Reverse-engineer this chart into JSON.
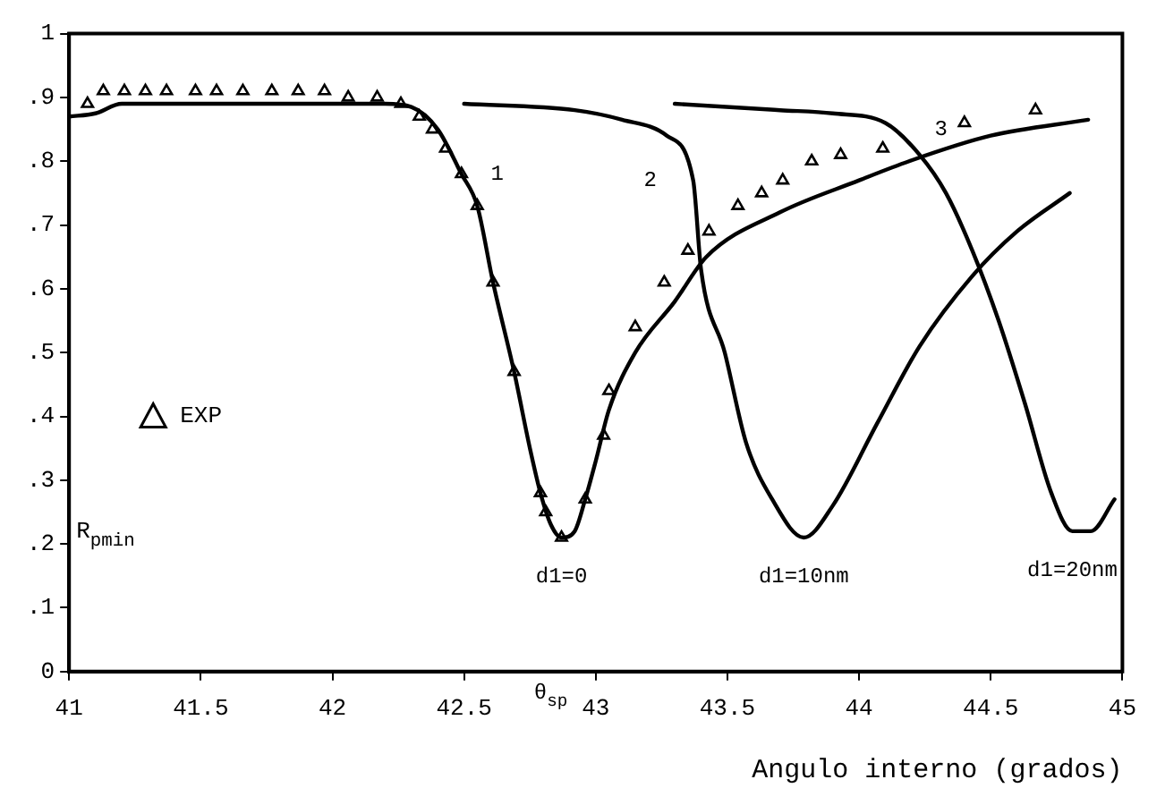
{
  "chart_data": {
    "type": "line",
    "xlabel": "Angulo interno (grados)",
    "ylabel": "R$_{pmin}$",
    "xlim": [
      41,
      45
    ],
    "ylim": [
      0,
      1
    ],
    "xticks": [
      41,
      41.5,
      42,
      42.5,
      43,
      43.5,
      44,
      44.5,
      45
    ],
    "yticks": [
      0,
      {
        "value": 0.1,
        "label": ".1"
      },
      {
        "value": 0.2,
        "label": ".2"
      },
      {
        "value": 0.3,
        "label": ".3"
      },
      {
        "value": 0.4,
        "label": ".4"
      },
      {
        "value": 0.5,
        "label": ".5"
      },
      {
        "value": 0.6,
        "label": ".6"
      },
      {
        "value": 0.7,
        "label": ".7"
      },
      {
        "value": 0.8,
        "label": ".8"
      },
      {
        "value": 0.9,
        "label": ".9"
      },
      1
    ],
    "grid": false,
    "legend": "left",
    "line_style": "solid",
    "marker": "none",
    "series": [
      {
        "name": "d1=0",
        "color": "#000000",
        "x": [
          41,
          41.1,
          41.2,
          41.5,
          42,
          42.2,
          42.3,
          42.4,
          42.49,
          42.55,
          42.61,
          42.69,
          42.75,
          42.79,
          42.83,
          42.87,
          42.92,
          42.96,
          43,
          43.05,
          43.15,
          43.3,
          43.42,
          43.7,
          44,
          44.19,
          44.5,
          44.87
        ],
        "values": [
          0.87,
          0.875,
          0.89,
          0.89,
          0.89,
          0.89,
          0.885,
          0.85,
          0.78,
          0.73,
          0.61,
          0.47,
          0.35,
          0.28,
          0.23,
          0.21,
          0.22,
          0.27,
          0.33,
          0.41,
          0.5,
          0.58,
          0.65,
          0.72,
          0.77,
          0.8,
          0.84,
          0.865
        ]
      },
      {
        "name": "d1=10nm",
        "color": "#000000",
        "x": [
          42.5,
          42.92,
          43.1,
          43.27,
          43.37,
          43.4,
          43.49,
          43.57,
          43.67,
          43.79,
          43.9,
          44.07,
          44.23,
          44.43,
          44.6,
          44.8
        ],
        "values": [
          0.89,
          0.88,
          0.865,
          0.84,
          0.77,
          0.63,
          0.5,
          0.36,
          0.27,
          0.21,
          0.26,
          0.39,
          0.51,
          0.62,
          0.69,
          0.75
        ]
      },
      {
        "name": "d1=20nm",
        "color": "#000000",
        "x": [
          43.3,
          43.7,
          43.9,
          44.1,
          44.23,
          44.33,
          44.43,
          44.53,
          44.63,
          44.73,
          44.81,
          44.88,
          44.97
        ],
        "values": [
          0.89,
          0.88,
          0.875,
          0.86,
          0.81,
          0.75,
          0.66,
          0.55,
          0.42,
          0.28,
          0.22,
          0.22,
          0.27
        ]
      },
      {
        "name": "EXP",
        "type": "scatter",
        "marker": "triangle",
        "color": "#000000",
        "x": [
          41.07,
          41.13,
          41.21,
          41.29,
          41.37,
          41.48,
          41.56,
          41.66,
          41.77,
          41.87,
          41.97,
          42.06,
          42.17,
          42.26,
          42.33,
          42.38,
          42.43,
          42.49,
          42.55,
          42.61,
          42.69,
          42.79,
          42.81,
          42.87,
          42.96,
          43.03,
          43.05,
          43.15,
          43.26,
          43.35,
          43.43,
          43.54,
          43.63,
          43.71,
          43.82,
          43.93,
          44.09,
          44.4,
          44.67
        ],
        "values": [
          0.89,
          0.91,
          0.91,
          0.91,
          0.91,
          0.91,
          0.91,
          0.91,
          0.91,
          0.91,
          0.91,
          0.9,
          0.9,
          0.89,
          0.87,
          0.85,
          0.82,
          0.78,
          0.73,
          0.61,
          0.47,
          0.28,
          0.25,
          0.21,
          0.27,
          0.37,
          0.44,
          0.54,
          0.61,
          0.66,
          0.69,
          0.73,
          0.75,
          0.77,
          0.8,
          0.81,
          0.82,
          0.86,
          0.88
        ]
      }
    ],
    "annotations": [
      "1",
      "2",
      "3",
      "θ$_{sp}$"
    ]
  }
}
